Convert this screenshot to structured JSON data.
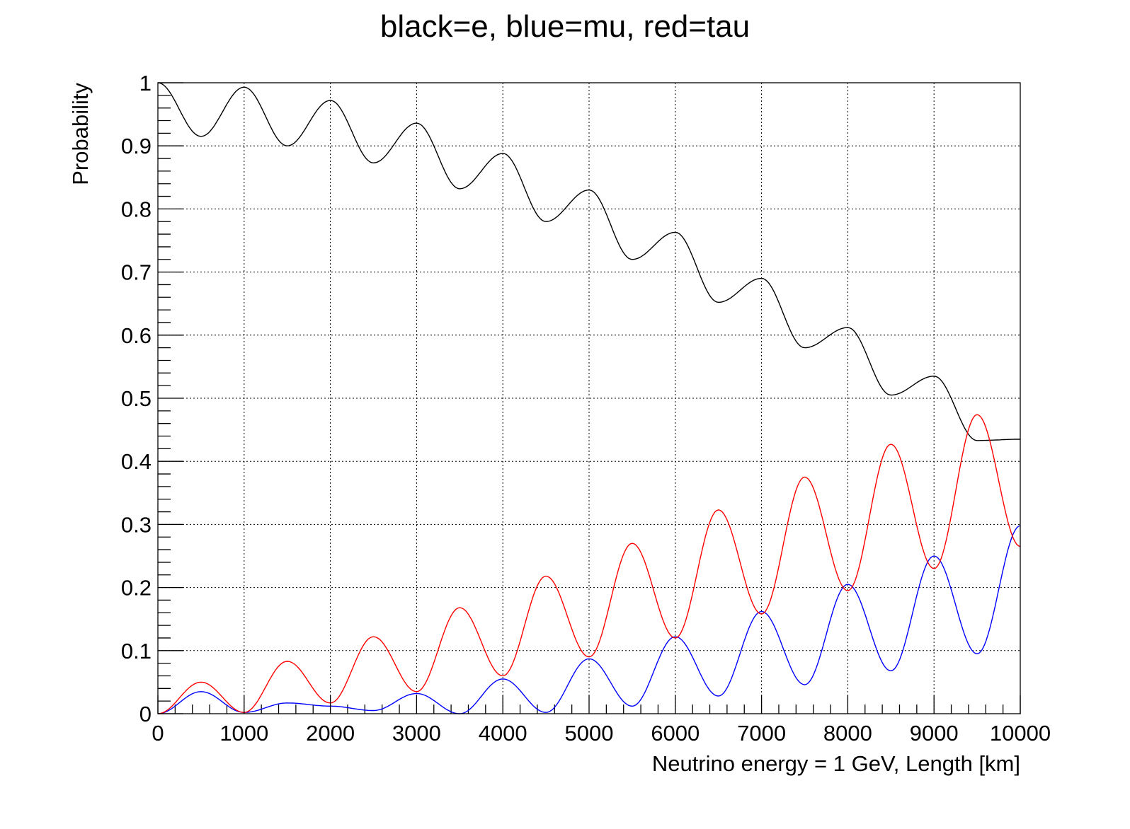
{
  "chart_data": {
    "type": "line",
    "title": "black=e, blue=mu, red=tau",
    "xlabel": "Neutrino energy = 1 GeV, Length [km]",
    "ylabel": "Probability",
    "xlim": [
      0,
      10000
    ],
    "ylim": [
      0,
      1
    ],
    "x_ticks": [
      0,
      1000,
      2000,
      3000,
      4000,
      5000,
      6000,
      7000,
      8000,
      9000,
      10000
    ],
    "x_tick_labels": [
      "0",
      "1000",
      "2000",
      "3000",
      "4000",
      "5000",
      "6000",
      "7000",
      "8000",
      "9000",
      "10000"
    ],
    "y_ticks": [
      0,
      0.1,
      0.2,
      0.3,
      0.4,
      0.5,
      0.6,
      0.7,
      0.8,
      0.9,
      1
    ],
    "y_tick_labels": [
      "0",
      "0.1",
      "0.2",
      "0.3",
      "0.4",
      "0.5",
      "0.6",
      "0.7",
      "0.8",
      "0.9",
      "1"
    ],
    "grid": true,
    "series": [
      {
        "color": "#000000",
        "x": [
          0,
          500,
          1000,
          1500,
          2000,
          2500,
          3000,
          3500,
          4000,
          4500,
          5000,
          5500,
          6000,
          6500,
          7000,
          7500,
          8000,
          8500,
          9000,
          9500,
          10000
        ],
        "y": [
          1.0,
          0.915,
          0.993,
          0.9,
          0.972,
          0.873,
          0.936,
          0.832,
          0.888,
          0.78,
          0.83,
          0.72,
          0.763,
          0.652,
          0.69,
          0.58,
          0.612,
          0.505,
          0.535,
          0.433,
          0.435
        ]
      },
      {
        "color": "#0000ff",
        "x": [
          0,
          500,
          1000,
          1500,
          2000,
          2500,
          3000,
          3500,
          4000,
          4500,
          5000,
          5500,
          6000,
          6500,
          7000,
          7500,
          8000,
          8500,
          9000,
          9500,
          10000
        ],
        "y": [
          0.0,
          0.035,
          0.002,
          0.017,
          0.012,
          0.005,
          0.032,
          0.0,
          0.055,
          0.002,
          0.087,
          0.012,
          0.122,
          0.028,
          0.162,
          0.046,
          0.205,
          0.068,
          0.25,
          0.095,
          0.298
        ]
      },
      {
        "color": "#ff0000",
        "x": [
          0,
          500,
          1000,
          1500,
          2000,
          2500,
          3000,
          3500,
          4000,
          4500,
          5000,
          5500,
          6000,
          6500,
          7000,
          7500,
          8000,
          8500,
          9000,
          9500,
          10000
        ],
        "y": [
          0.0,
          0.05,
          0.002,
          0.083,
          0.017,
          0.122,
          0.035,
          0.168,
          0.06,
          0.218,
          0.09,
          0.27,
          0.12,
          0.323,
          0.158,
          0.375,
          0.195,
          0.427,
          0.23,
          0.474,
          0.265
        ]
      }
    ]
  }
}
